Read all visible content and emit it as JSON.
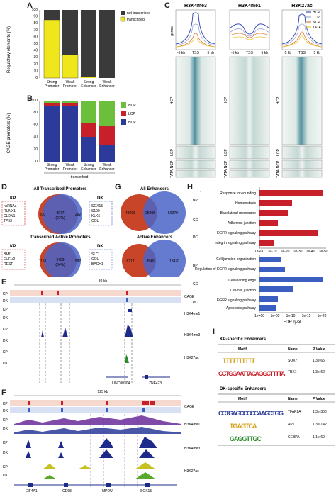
{
  "panels": {
    "A": {
      "label": "A",
      "ylabel": "Regulatory elements (%)",
      "yticks": [
        "0",
        "10",
        "20",
        "30",
        "40",
        "50",
        "60",
        "70",
        "80",
        "90",
        "100"
      ],
      "legend": [
        "not transcribed",
        "transcribed"
      ],
      "categories": [
        "Strong Promoter",
        "Weak Promoter",
        "Strong Enhancer",
        "Weak Enhancer"
      ],
      "colors": {
        "not_transcribed": "#3a3a3a",
        "transcribed": "#f0e61c"
      }
    },
    "B": {
      "label": "B",
      "ylabel": "CAGE promoters (%)",
      "yticks": [
        "0",
        "20",
        "40",
        "60",
        "80",
        "100"
      ],
      "legend": [
        "NCP",
        "LCP",
        "HCP"
      ],
      "categories": [
        "Strong Promoter",
        "Weak Promoter",
        "Strong Enhancer",
        "Weak Enhancer"
      ],
      "xgroup": "transcribed",
      "colors": {
        "NCP": "#6cbf3a",
        "LCP": "#c8202a",
        "HCP": "#2c3a9a"
      }
    },
    "C": {
      "label": "C",
      "marks": [
        "H3K4me3",
        "H3K4me1",
        "H3K27ac"
      ],
      "ylabel": "genes",
      "legend": [
        "HCP",
        "LCP",
        "NCP",
        "TATA"
      ],
      "axis": [
        "-5 kb",
        "TSS",
        "5 kb"
      ],
      "rows": [
        "HCP",
        "LCP",
        "NCP",
        "TATA"
      ],
      "colors": {
        "HCP": "#3b4fb0",
        "LCP": "#9aa6d6",
        "NCP": "#e07b3a",
        "TATA": "#e8c83a"
      }
    },
    "D": {
      "label": "D",
      "top": {
        "title": "All Transcribed Promoters",
        "left_n": "310",
        "mid_n": "8977",
        "mid_pct": "(97%)",
        "right_n": "292",
        "kp_genes": [
          "ncRNAs",
          "RUNX1",
          "CLDN1",
          "TP53"
        ],
        "dk_genes": [
          "SOX15",
          "S100",
          "KLK5",
          "COL"
        ]
      },
      "bottom": {
        "title": "Transcribed Active Promoters",
        "left_n": "1118",
        "mid_n": "5709",
        "mid_pct": "(84%)",
        "right_n": "987",
        "kp_genes": [
          "BMI1",
          "ELF1/2",
          "REST"
        ],
        "dk_genes": [
          "SLC",
          "COL",
          "BACH1"
        ]
      },
      "kp": "KP",
      "dk": "DK"
    },
    "G": {
      "label": "G",
      "top": {
        "title": "All Enhancers",
        "left_n": "43408",
        "mid_n": "25408",
        "right_n": "56279"
      },
      "bottom": {
        "title": "Active Enhancers",
        "left_n": "8217",
        "mid_n": "3540",
        "right_n": "13470"
      }
    },
    "H": {
      "label": "H",
      "xlabel": "FDR qval",
      "top_groups": [
        "BP",
        "CC",
        "PC"
      ],
      "bottom_groups": [
        "BP",
        "CC",
        "PC"
      ],
      "top_terms": [
        "Response to wounding",
        "Homeostasis",
        "Basolateral membrane",
        "Adherens junction",
        "EGFR signaling pathway",
        "Integrin signaling pathway"
      ],
      "bottom_terms": [
        "Cell junction organization",
        "Regulation of EGFR signaling pathway",
        "Cell leading edge",
        "Cell-cell junction",
        "EGFR signaling pathway",
        "Apoptosis pathway"
      ],
      "top_ticks": [
        "1e+00",
        "1e-10",
        "1e-20",
        "1e-30",
        "1e-40",
        "1e-50"
      ],
      "bottom_ticks": [
        "1e+00",
        "1e-05",
        "1e-10",
        "1e-15",
        "1e-20"
      ],
      "colors": {
        "top": "#c8202a",
        "bottom": "#3b5fc0"
      }
    },
    "E": {
      "label": "E",
      "scale": "80 kb",
      "tracks": [
        "CAGE",
        "H3K4me1",
        "H3K4me3",
        "H3K27ac"
      ],
      "genes": [
        "LINC00304",
        "ZNF423"
      ],
      "rows": [
        "KP",
        "DK",
        "KP",
        "DK",
        "KP",
        "DK",
        "KP",
        "DK"
      ]
    },
    "F": {
      "label": "F",
      "scale": "125 kb",
      "tracks": [
        "CAGE",
        "H3K4me1",
        "H3K4me3",
        "H3K27ac"
      ],
      "genes": [
        "EIF4A1",
        "CD68",
        "MPDU",
        "SOX15"
      ],
      "rows": [
        "KP",
        "DK",
        "KP",
        "DK",
        "KP",
        "DK",
        "KP",
        "DK"
      ]
    },
    "I": {
      "label": "I",
      "kp_title": "KP-specific Enhancers",
      "dk_title": "DK-specific Enhancers",
      "headers": [
        "Motif",
        "Name",
        "P Value"
      ],
      "kp_rows": [
        {
          "name": "SOX7",
          "p": "1.3e-65"
        },
        {
          "name": "TBX1",
          "p": "1.3e-62"
        }
      ],
      "dk_rows": [
        {
          "name": "TFAP2A",
          "p": "1.3e-360"
        },
        {
          "name": "AP1",
          "p": "1.3e-142"
        },
        {
          "name": "CEBPA",
          "p": "1.1e-60"
        }
      ],
      "kp_motifs": [
        "TTTTTTTTTT",
        "CCTGGAATTACAGGCTTTTA"
      ],
      "dk_motifs": [
        "CCTGAGCCCCCAAGCTGG",
        "TGAGTCA",
        "GAGGTTGC"
      ]
    }
  }
}
